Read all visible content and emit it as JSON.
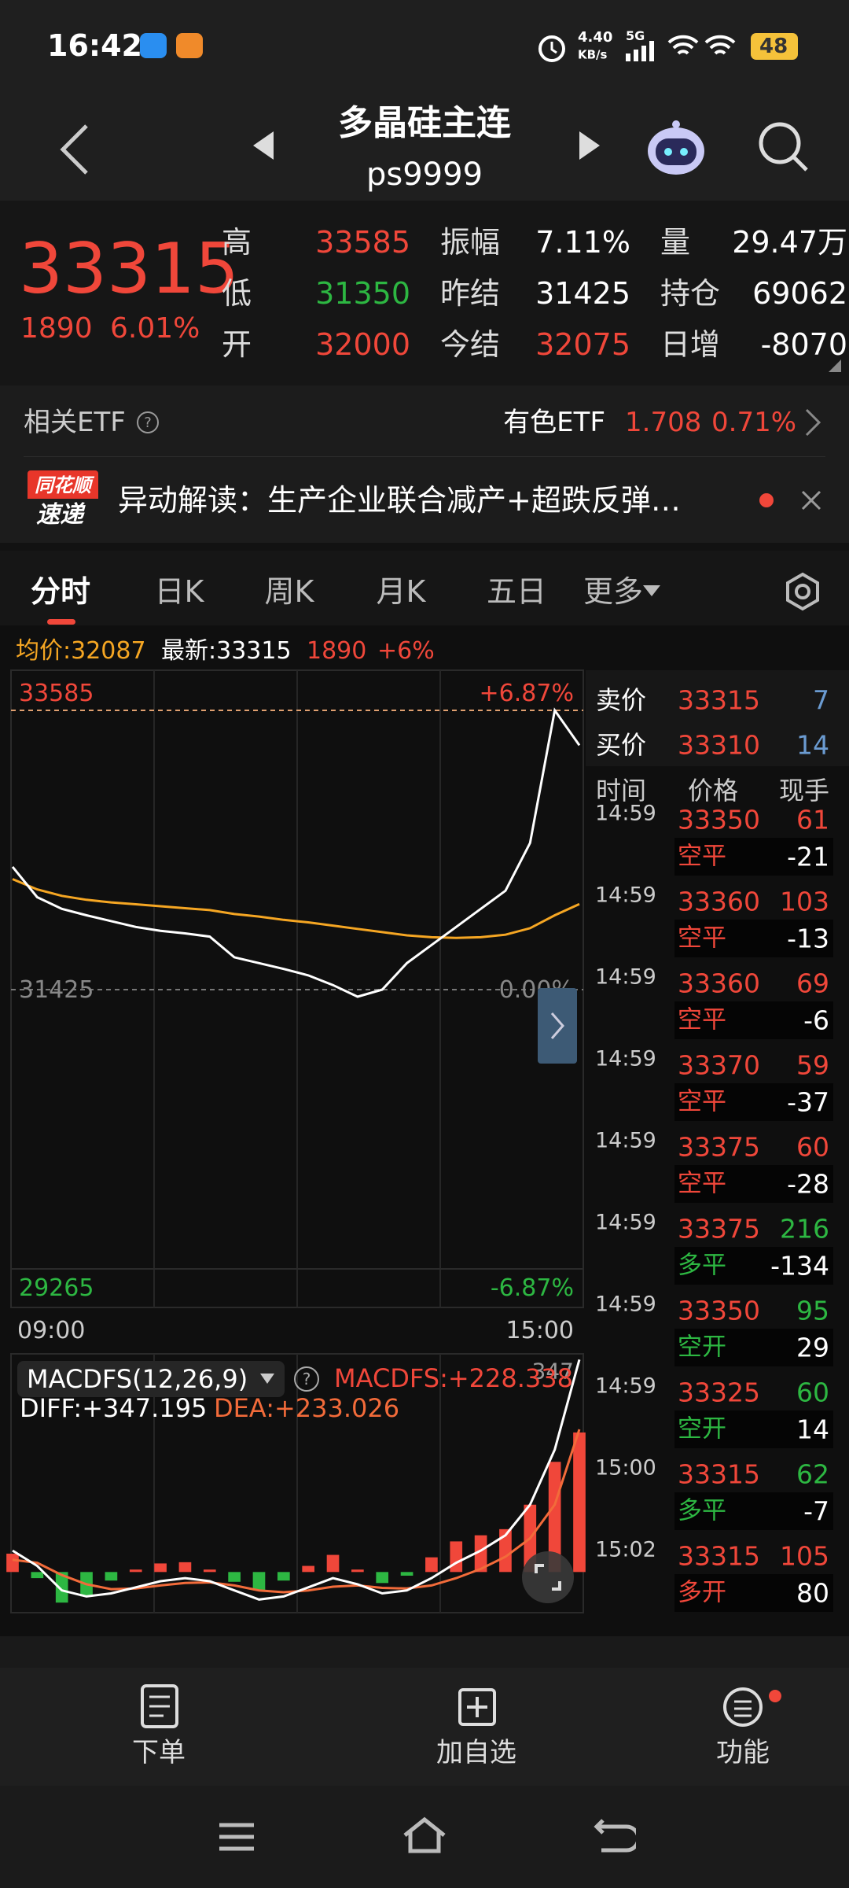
{
  "status": {
    "time": "16:42",
    "speed": "4.40",
    "speed_unit": "KB/s",
    "network": "5G",
    "battery": "48"
  },
  "header": {
    "title": "多晶硅主连",
    "code": "ps9999"
  },
  "quote": {
    "price": "33315",
    "change": "1890",
    "change_pct": "6.01%",
    "fields": [
      {
        "label": "高",
        "value": "33585",
        "color": "#f0473a"
      },
      {
        "label": "振幅",
        "value": "7.11%",
        "color": "#ffffff"
      },
      {
        "label": "量",
        "value": "29.47万",
        "color": "#ffffff"
      },
      {
        "label": "低",
        "value": "31350",
        "color": "#2db742"
      },
      {
        "label": "昨结",
        "value": "31425",
        "color": "#ffffff"
      },
      {
        "label": "持仓",
        "value": "69062",
        "color": "#ffffff"
      },
      {
        "label": "开",
        "value": "32000",
        "color": "#f0473a"
      },
      {
        "label": "今结",
        "value": "32075",
        "color": "#f0473a"
      },
      {
        "label": "日增",
        "value": "-8070",
        "color": "#ffffff"
      }
    ]
  },
  "etf": {
    "label": "相关ETF",
    "name": "有色ETF",
    "price": "1.708",
    "pct": "0.71%"
  },
  "news": {
    "badge_top": "同花顺",
    "badge_bottom": "速递",
    "text": "异动解读：生产企业联合减产+超跌反弹…"
  },
  "tabs": [
    "分时",
    "日K",
    "周K",
    "月K",
    "五日",
    "更多"
  ],
  "info": {
    "avg": "均价:32087",
    "latest": "最新:33315",
    "change": "1890",
    "pct": "+6%"
  },
  "chart_data": [
    {
      "type": "line",
      "series": [
        {
          "color": "#ffffff",
          "values": [
            32375,
            32140,
            32050,
            32000,
            31955,
            31910,
            31880,
            31860,
            31835,
            31675,
            31630,
            31585,
            31535,
            31460,
            31370,
            31425,
            31630,
            31770,
            31910,
            32050,
            32190,
            32560,
            33585,
            33315
          ]
        },
        {
          "color": "#f5a623",
          "values": [
            32280,
            32200,
            32150,
            32120,
            32100,
            32085,
            32070,
            32055,
            32040,
            32010,
            31990,
            31965,
            31945,
            31920,
            31895,
            31870,
            31845,
            31830,
            31825,
            31830,
            31850,
            31900,
            32000,
            32087
          ]
        }
      ],
      "ylim": [
        29265,
        33585
      ],
      "yticks": [
        29265,
        31425,
        33585
      ],
      "y2lim": [
        -6.87,
        6.87
      ],
      "y2ticks": [
        {
          "value": -6.87,
          "label": "-6.87%"
        },
        {
          "value": 0,
          "label": "0.00%"
        },
        {
          "value": 6.87,
          "label": "+6.87%"
        }
      ],
      "tick_colors": [
        "#2db742",
        "#888888",
        "#f0473a"
      ],
      "xtick_labels": [
        "09:00",
        "15:00"
      ]
    },
    {
      "type": "macd",
      "title": "MACDFS(12,26,9)",
      "readouts": [
        "MACDFS:+228.338",
        "DIFF:+347.195",
        "DEA:+233.026"
      ],
      "readout_colors": [
        "#f0473a",
        "#ffffff",
        "#f26b3a"
      ],
      "series": [
        {
          "color": "#ffffff",
          "values": [
            35,
            10,
            -30,
            -40,
            -35,
            -25,
            -15,
            -10,
            -15,
            -30,
            -45,
            -40,
            -25,
            -10,
            -20,
            -35,
            -30,
            -10,
            15,
            35,
            60,
            110,
            200,
            347
          ]
        },
        {
          "color": "#f26b3a",
          "values": [
            20,
            15,
            -5,
            -20,
            -28,
            -27,
            -22,
            -18,
            -17,
            -22,
            -30,
            -33,
            -30,
            -24,
            -22,
            -26,
            -27,
            -22,
            -10,
            5,
            25,
            55,
            110,
            233
          ]
        },
        {
          "color": "#f0473a",
          "negative_color": "#2db742",
          "values": [
            30,
            -10,
            -50,
            -40,
            -14,
            4,
            14,
            16,
            4,
            -16,
            -30,
            -14,
            10,
            28,
            4,
            -18,
            -6,
            24,
            50,
            60,
            70,
            110,
            180,
            228
          ]
        }
      ],
      "ylim": [
        -60,
        350
      ],
      "yticks": [
        347
      ]
    }
  ],
  "trades": {
    "ask_label": "卖价",
    "ask": "33315",
    "ask_vol": "7",
    "bid_label": "买价",
    "bid": "33310",
    "bid_vol": "14",
    "headers": [
      "时间",
      "价格",
      "现手"
    ],
    "rows": [
      {
        "time": "14:59",
        "price": "33350",
        "volume": "61",
        "volume_color": "#f0473a",
        "type": "空平",
        "type_color": "#f0473a",
        "delta": "-21"
      },
      {
        "time": "14:59",
        "price": "33360",
        "volume": "103",
        "volume_color": "#f0473a",
        "type": "空平",
        "type_color": "#f0473a",
        "delta": "-13"
      },
      {
        "time": "14:59",
        "price": "33360",
        "volume": "69",
        "volume_color": "#f0473a",
        "type": "空平",
        "type_color": "#f0473a",
        "delta": "-6"
      },
      {
        "time": "14:59",
        "price": "33370",
        "volume": "59",
        "volume_color": "#f0473a",
        "type": "空平",
        "type_color": "#f0473a",
        "delta": "-37"
      },
      {
        "time": "14:59",
        "price": "33375",
        "volume": "60",
        "volume_color": "#f0473a",
        "type": "空平",
        "type_color": "#f0473a",
        "delta": "-28"
      },
      {
        "time": "14:59",
        "price": "33375",
        "volume": "216",
        "volume_color": "#2db742",
        "type": "多平",
        "type_color": "#2db742",
        "delta": "-134"
      },
      {
        "time": "14:59",
        "price": "33350",
        "volume": "95",
        "volume_color": "#2db742",
        "type": "空开",
        "type_color": "#2db742",
        "delta": "29"
      },
      {
        "time": "14:59",
        "price": "33325",
        "volume": "60",
        "volume_color": "#2db742",
        "type": "空开",
        "type_color": "#2db742",
        "delta": "14"
      },
      {
        "time": "15:00",
        "price": "33315",
        "volume": "62",
        "volume_color": "#2db742",
        "type": "多平",
        "type_color": "#2db742",
        "delta": "-7"
      },
      {
        "time": "15:02",
        "price": "33315",
        "volume": "105",
        "volume_color": "#f0473a",
        "type": "多开",
        "type_color": "#f0473a",
        "delta": "80"
      }
    ]
  },
  "footer": {
    "buttons": [
      "下单",
      "加自选",
      "功能"
    ]
  }
}
